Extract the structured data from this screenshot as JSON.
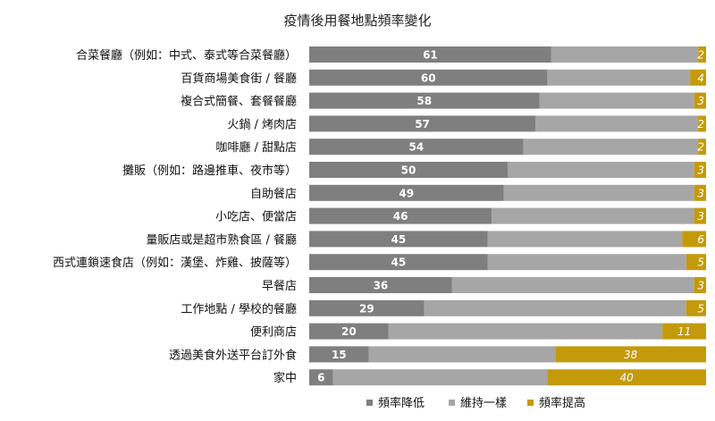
{
  "chart_data": {
    "type": "bar",
    "stacked": true,
    "orientation": "horizontal",
    "title": "疫情後用餐地點頻率變化",
    "xlabel": "",
    "ylabel": "",
    "xlim": [
      0,
      100
    ],
    "grid": false,
    "legend_position": "bottom",
    "categories": [
      "合菜餐廳（例如：中式、泰式等合菜餐廳）",
      "百貨商場美食街 / 餐廳",
      "複合式簡餐、套餐餐廳",
      "火鍋 / 烤肉店",
      "咖啡廳 / 甜點店",
      "攤販（例如：路邊推車、夜市等）",
      "自助餐店",
      "小吃店、便當店",
      "量販店或是超市熟食區 / 餐廳",
      "西式連鎖速食店（例如：漢堡、炸雞、披薩等）",
      "早餐店",
      "工作地點 / 學校的餐廳",
      "便利商店",
      "透過美食外送平台訂外食",
      "家中"
    ],
    "series": [
      {
        "name": "頻率降低",
        "color": "#7f7f7f",
        "values": [
          61,
          60,
          58,
          57,
          54,
          50,
          49,
          46,
          45,
          45,
          36,
          29,
          20,
          15,
          6
        ]
      },
      {
        "name": "維持一樣",
        "color": "#a6a6a6",
        "values": [
          37,
          36,
          39,
          41,
          44,
          47,
          48,
          51,
          49,
          50,
          61,
          66,
          69,
          47,
          54
        ]
      },
      {
        "name": "頻率提高",
        "color": "#c49a0b",
        "values": [
          2,
          4,
          3,
          2,
          2,
          3,
          3,
          3,
          6,
          5,
          3,
          5,
          11,
          38,
          40
        ]
      }
    ]
  }
}
